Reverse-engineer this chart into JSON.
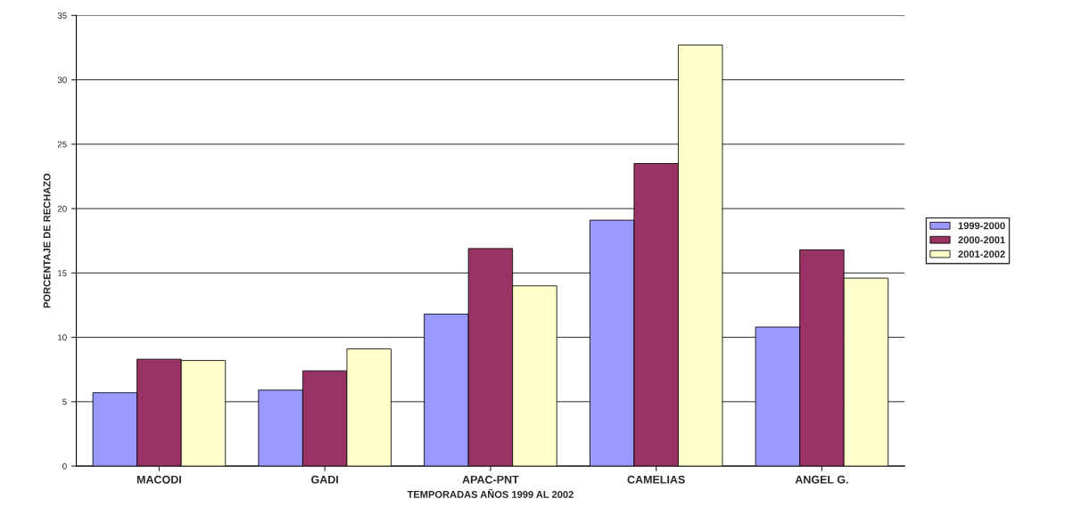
{
  "chart_data": {
    "type": "bar",
    "xlabel": "TEMPORADAS AÑOS 1999 AL 2002",
    "ylabel": "PORCENTAJE DE RECHAZO",
    "categories": [
      "MACODI",
      "GADI",
      "APAC-PNT",
      "CAMELIAS",
      "ANGEL G."
    ],
    "series": [
      {
        "name": "1999-2000",
        "color": "#9999ff",
        "values": [
          5.7,
          5.9,
          11.8,
          19.1,
          10.8
        ]
      },
      {
        "name": "2000-2001",
        "color": "#993366",
        "values": [
          8.3,
          7.4,
          16.9,
          23.5,
          16.8
        ]
      },
      {
        "name": "2001-2002",
        "color": "#ffffcc",
        "values": [
          8.2,
          9.1,
          14.0,
          32.7,
          14.6
        ]
      }
    ],
    "ylim": [
      0,
      35
    ],
    "yticks": [
      0,
      5,
      10,
      15,
      20,
      25,
      30,
      35
    ],
    "grid": "y",
    "legend": "right"
  }
}
